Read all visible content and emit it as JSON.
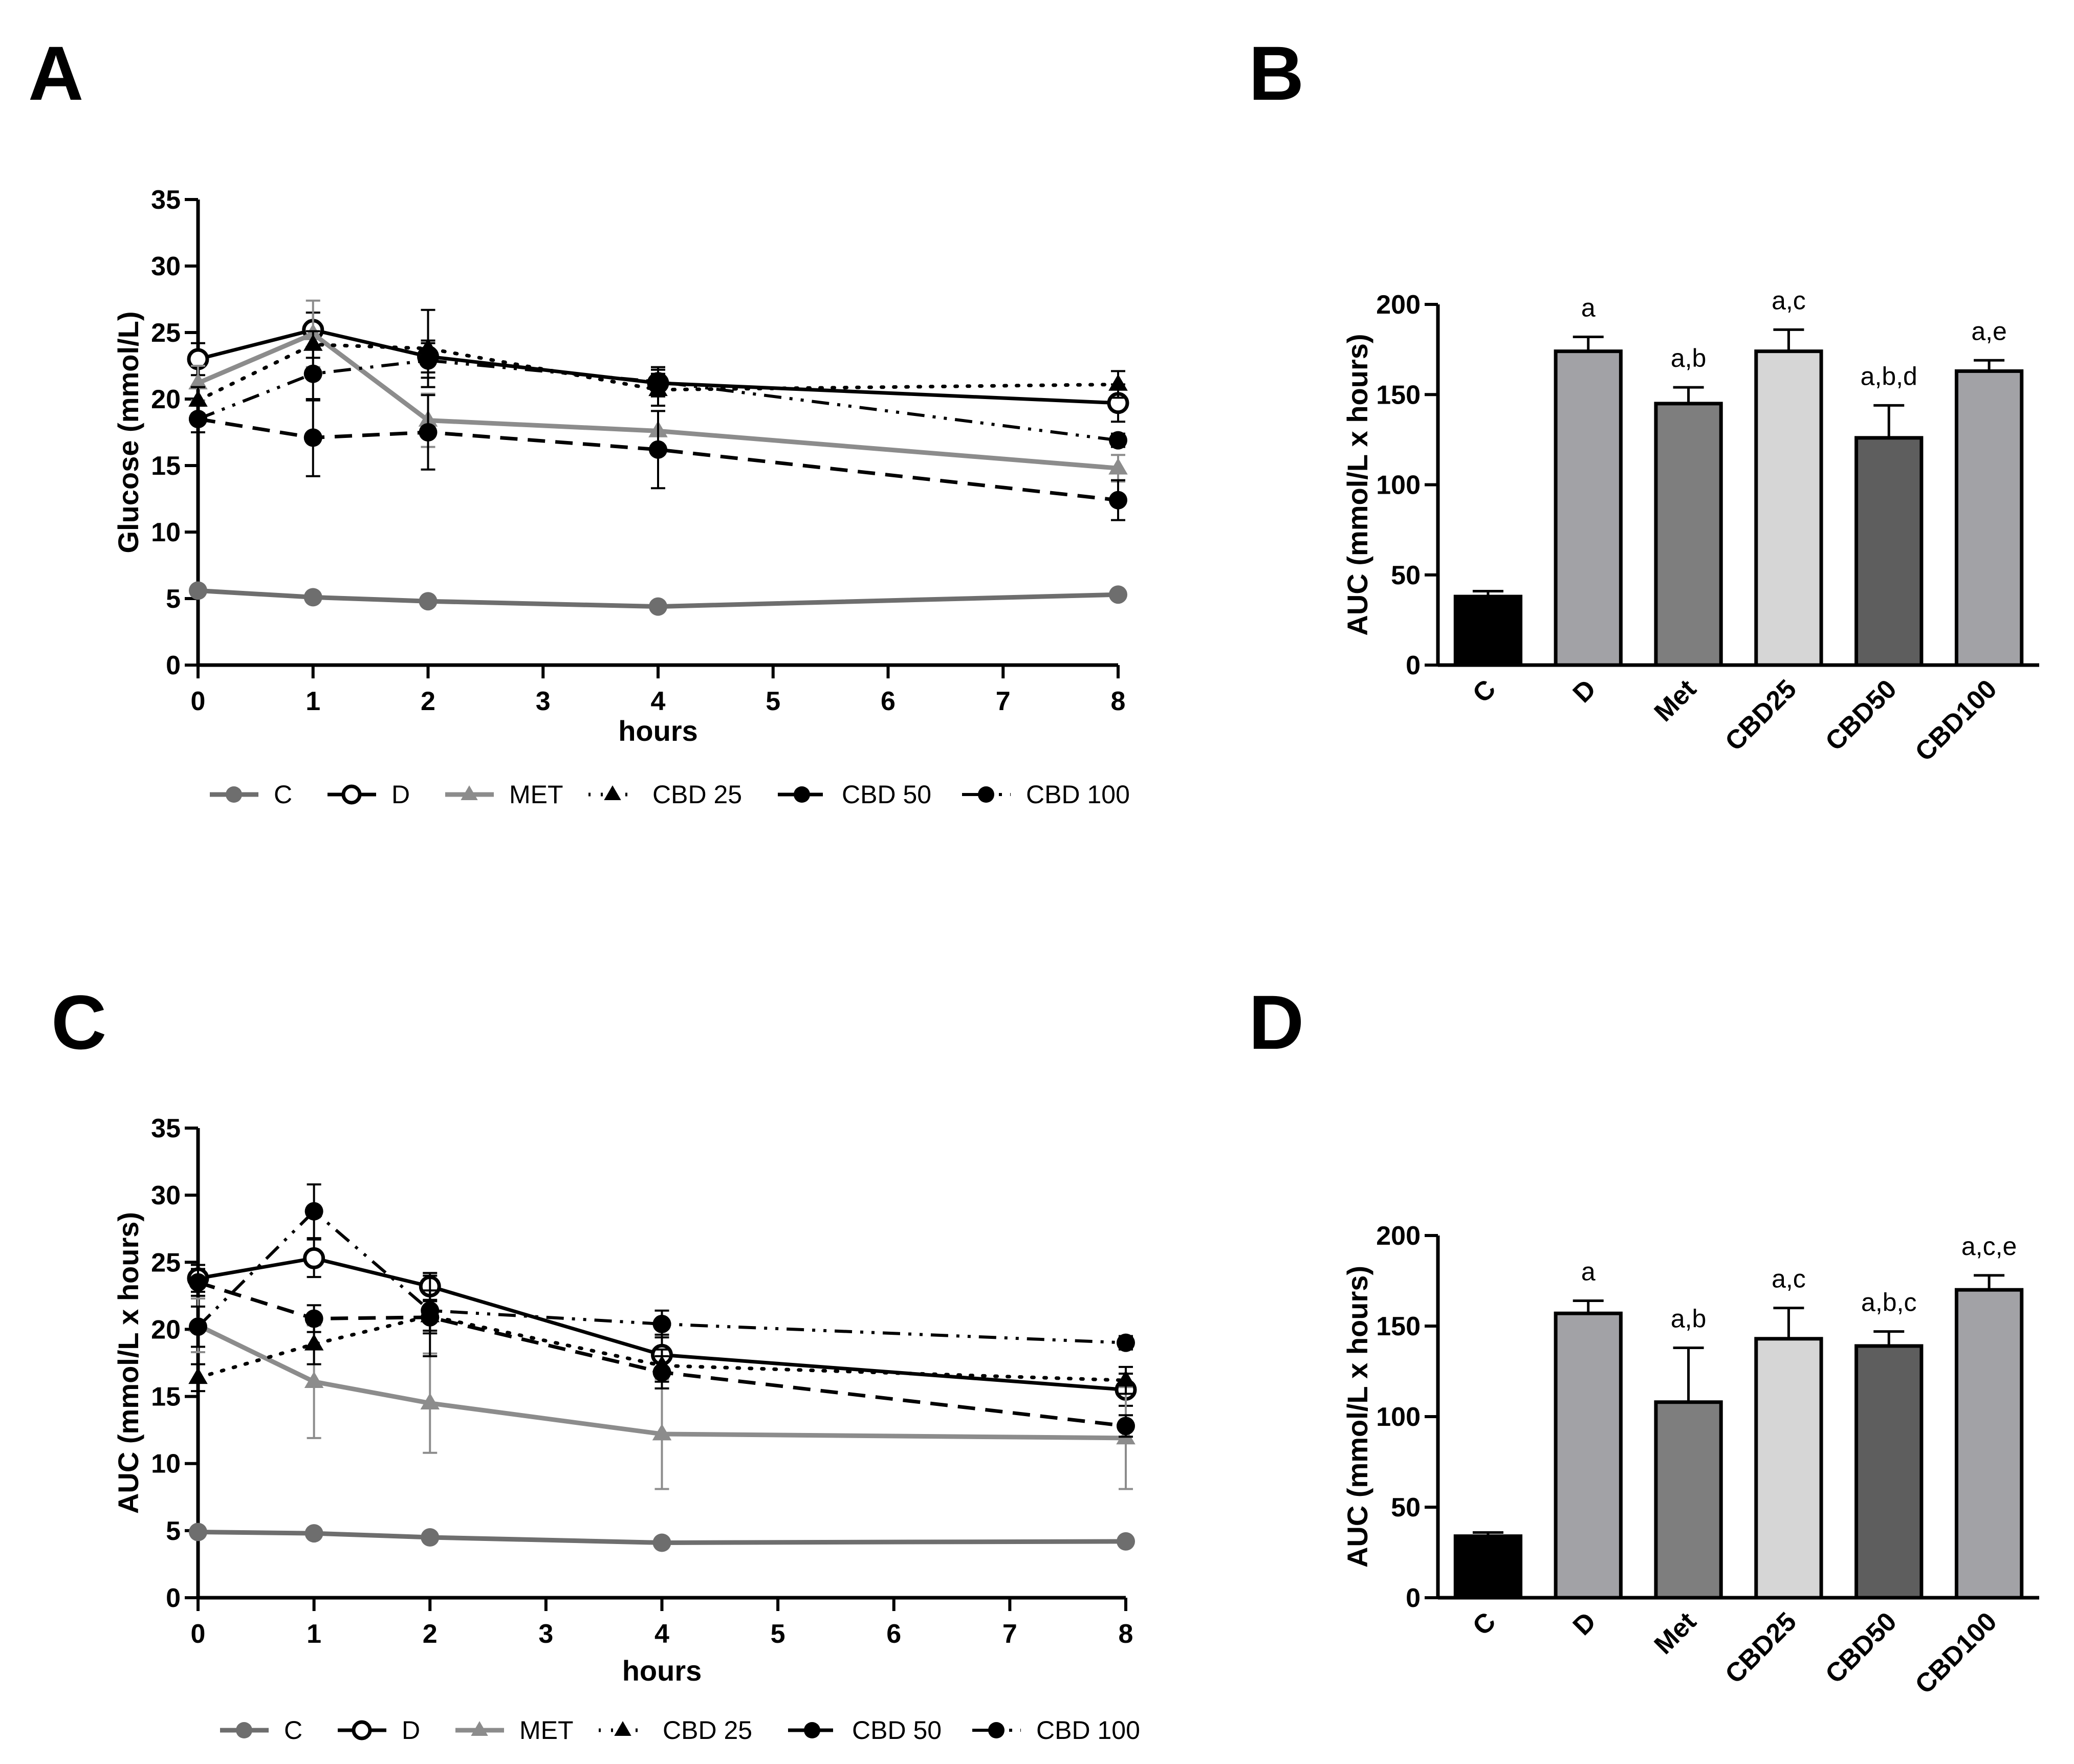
{
  "panels": [
    {
      "id": "A",
      "label": "A"
    },
    {
      "id": "B",
      "label": "B"
    },
    {
      "id": "C",
      "label": "C"
    },
    {
      "id": "D",
      "label": "D"
    }
  ],
  "chart_data": [
    {
      "panel": "A",
      "type": "line",
      "title": "",
      "xlabel": "hours",
      "ylabel": "Glucose (mmol/L)",
      "xlim": [
        0,
        8
      ],
      "ylim": [
        0,
        35
      ],
      "xticks": [
        0,
        1,
        2,
        3,
        4,
        5,
        6,
        7,
        8
      ],
      "yticks": [
        0,
        5,
        10,
        15,
        20,
        25,
        30,
        35
      ],
      "x": [
        0,
        1,
        2,
        4,
        8
      ],
      "legend_position": "bottom",
      "series": [
        {
          "name": "C",
          "values": [
            5.6,
            5.1,
            4.8,
            4.4,
            5.3
          ],
          "err": [
            0.3,
            0.3,
            0.3,
            0.3,
            0.3
          ],
          "color": "#6e6e6e",
          "dash": "solid",
          "marker": "circle-filled",
          "width": 9
        },
        {
          "name": "D",
          "values": [
            23.0,
            25.2,
            23.2,
            21.2,
            19.7
          ],
          "err": [
            1.2,
            1.3,
            1.2,
            1.0,
            1.4
          ],
          "color": "#000000",
          "dash": "solid",
          "marker": "circle-open",
          "width": 7
        },
        {
          "name": "MET",
          "values": [
            21.2,
            24.9,
            18.4,
            17.6,
            14.8
          ],
          "err": [
            1.3,
            2.5,
            2.0,
            1.5,
            1.0
          ],
          "color": "#8c8c8c",
          "dash": "solid",
          "marker": "triangle",
          "width": 9
        },
        {
          "name": "CBD 25",
          "values": [
            19.9,
            24.1,
            23.8,
            20.7,
            21.1
          ],
          "err": [
            1.0,
            1.0,
            2.9,
            1.2,
            1.0
          ],
          "color": "#000000",
          "dash": "dot",
          "marker": "triangle",
          "width": 7
        },
        {
          "name": "CBD 50",
          "values": [
            18.5,
            17.1,
            17.5,
            16.2,
            12.4
          ],
          "err": [
            1.0,
            2.9,
            2.8,
            2.9,
            1.5
          ],
          "color": "#000000",
          "dash": "dash",
          "marker": "circle-filled",
          "width": 7
        },
        {
          "name": "CBD 100",
          "values": [
            18.5,
            21.9,
            22.9,
            21.3,
            16.9
          ],
          "err": [
            1.0,
            2.0,
            1.3,
            1.1,
            0.5
          ],
          "color": "#000000",
          "dash": "dashdotdot",
          "marker": "circle-filled",
          "width": 6
        }
      ]
    },
    {
      "panel": "B",
      "type": "bar",
      "title": "",
      "xlabel": "",
      "ylabel": "AUC (mmol/L x hours)",
      "ylim": [
        0,
        200
      ],
      "yticks": [
        0,
        50,
        100,
        150,
        200
      ],
      "categories": [
        "C",
        "D",
        "Met",
        "CBD25",
        "CBD50",
        "CBD100"
      ],
      "values": [
        38,
        174,
        145,
        174,
        126,
        163
      ],
      "err": [
        3,
        8,
        9,
        12,
        18,
        6
      ],
      "colors": [
        "#000000",
        "#a2a2a6",
        "#7e7e7e",
        "#d6d6d6",
        "#5e5e5e",
        "#a2a2a6"
      ],
      "annotations": [
        "",
        "a",
        "a,b",
        "a,c",
        "a,b,d",
        "a,e"
      ]
    },
    {
      "panel": "C",
      "type": "line",
      "title": "",
      "xlabel": "hours",
      "ylabel": "AUC (mmol/L x hours)",
      "xlim": [
        0,
        8
      ],
      "ylim": [
        0,
        35
      ],
      "xticks": [
        0,
        1,
        2,
        3,
        4,
        5,
        6,
        7,
        8
      ],
      "yticks": [
        0,
        5,
        10,
        15,
        20,
        25,
        30,
        35
      ],
      "x": [
        0,
        1,
        2,
        4,
        8
      ],
      "legend_position": "bottom",
      "series": [
        {
          "name": "C",
          "values": [
            4.9,
            4.8,
            4.5,
            4.1,
            4.2
          ],
          "err": [
            0.3,
            0.3,
            0.3,
            0.3,
            0.3
          ],
          "color": "#6e6e6e",
          "dash": "solid",
          "marker": "circle-filled",
          "width": 9
        },
        {
          "name": "D",
          "values": [
            23.8,
            25.3,
            23.2,
            18.1,
            15.5
          ],
          "err": [
            1.0,
            1.4,
            1.0,
            1.5,
            1.2
          ],
          "color": "#000000",
          "dash": "solid",
          "marker": "circle-open",
          "width": 7
        },
        {
          "name": "MET",
          "values": [
            20.3,
            16.1,
            14.5,
            12.2,
            11.9
          ],
          "err": [
            2.0,
            4.2,
            3.7,
            4.1,
            3.8
          ],
          "color": "#8c8c8c",
          "dash": "solid",
          "marker": "triangle",
          "width": 9
        },
        {
          "name": "CBD 25",
          "values": [
            16.4,
            18.9,
            21.0,
            17.3,
            16.2
          ],
          "err": [
            1.0,
            1.5,
            3.0,
            1.2,
            1.0
          ],
          "color": "#000000",
          "dash": "dot",
          "marker": "triangle",
          "width": 7
        },
        {
          "name": "CBD 50",
          "values": [
            23.5,
            20.8,
            20.9,
            16.8,
            12.8
          ],
          "err": [
            1.0,
            1.0,
            1.2,
            1.2,
            0.8
          ],
          "color": "#000000",
          "dash": "dash",
          "marker": "circle-filled",
          "width": 7
        },
        {
          "name": "CBD 100",
          "values": [
            20.2,
            28.8,
            21.4,
            20.4,
            19.0
          ],
          "err": [
            1.5,
            2.0,
            1.5,
            1.0,
            0.5
          ],
          "color": "#000000",
          "dash": "dashdotdot",
          "marker": "circle-filled",
          "width": 6
        }
      ]
    },
    {
      "panel": "D",
      "type": "bar",
      "title": "",
      "xlabel": "",
      "ylabel": "AUC (mmol/L x hours)",
      "ylim": [
        0,
        200
      ],
      "yticks": [
        0,
        50,
        100,
        150,
        200
      ],
      "categories": [
        "C",
        "D",
        "Met",
        "CBD25",
        "CBD50",
        "CBD100"
      ],
      "values": [
        34,
        157,
        108,
        143,
        139,
        170
      ],
      "err": [
        2,
        7,
        30,
        17,
        8,
        8
      ],
      "colors": [
        "#000000",
        "#a2a2a6",
        "#7e7e7e",
        "#d6d6d6",
        "#5e5e5e",
        "#a2a2a6"
      ],
      "annotations": [
        "",
        "a",
        "a,b",
        "a,c",
        "a,b,c",
        "a,c,e"
      ]
    }
  ]
}
